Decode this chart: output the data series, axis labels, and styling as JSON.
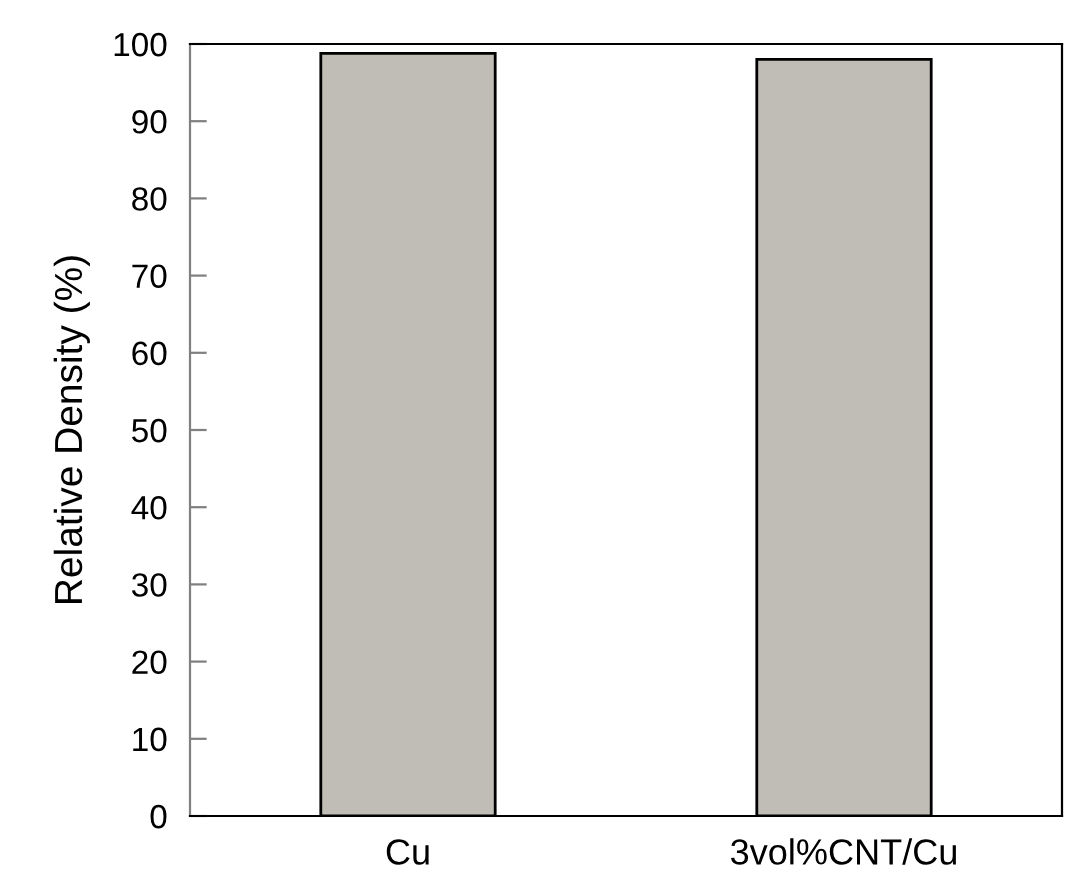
{
  "chart_data": {
    "type": "bar",
    "ylabel": "Relative Density (%)",
    "categories": [
      "Cu",
      "3vol%CNT/Cu"
    ],
    "values": [
      98.8,
      98.0
    ],
    "color": "#c0bdb7",
    "ylim": [
      0,
      100
    ],
    "yticks": [
      0,
      10,
      20,
      30,
      40,
      50,
      60,
      70,
      80,
      90,
      100
    ],
    "grid": false,
    "legend": false
  }
}
